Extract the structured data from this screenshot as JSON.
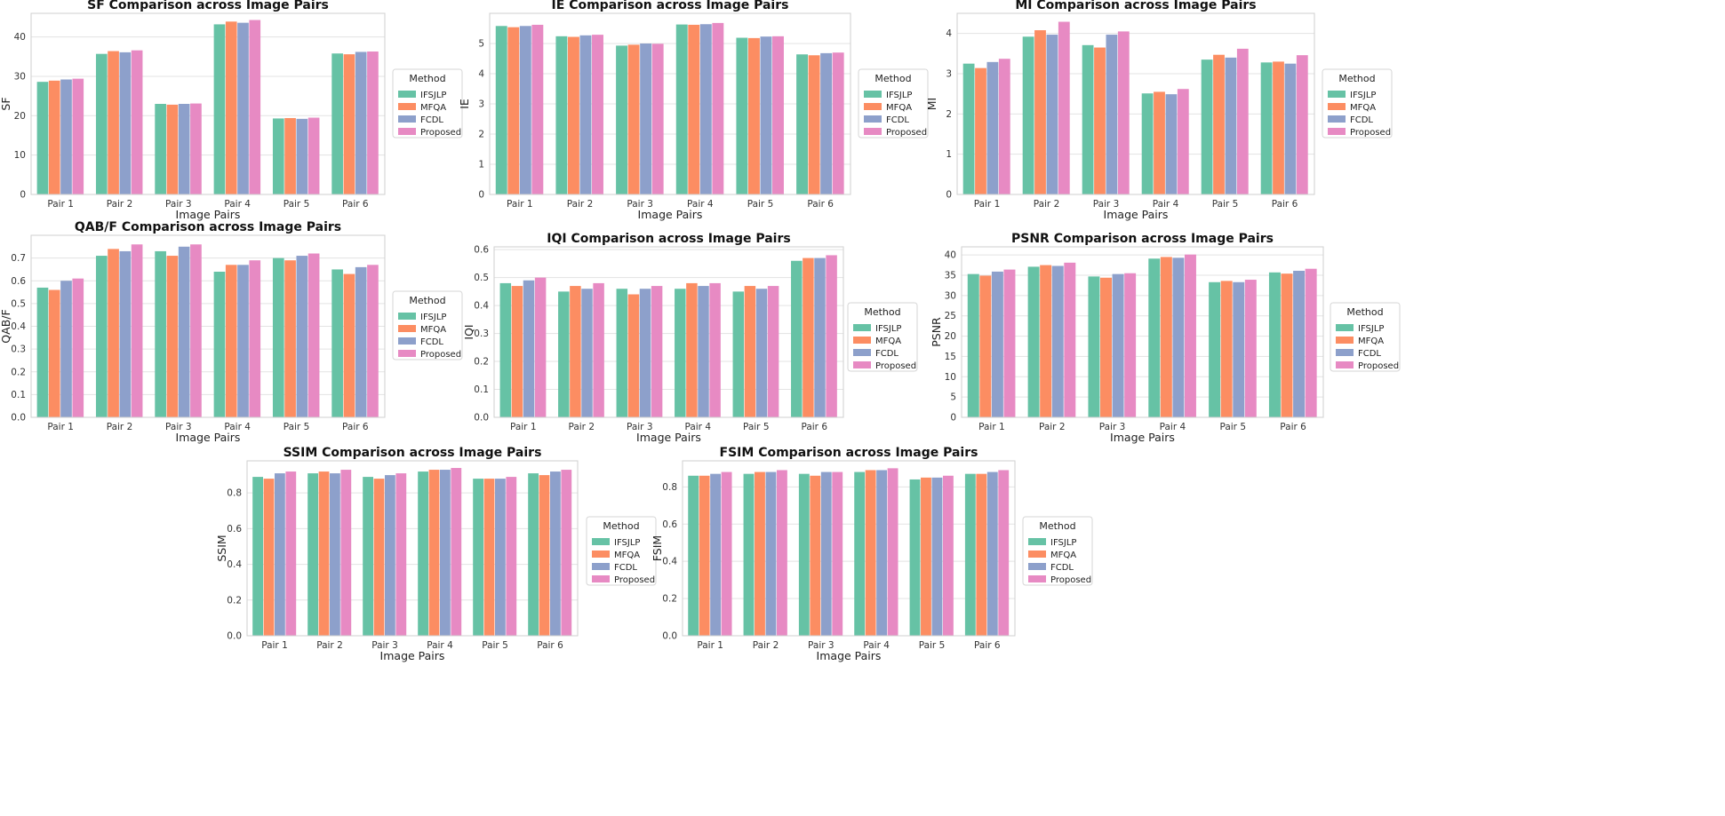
{
  "colors": {
    "IFSJLP": "#66c2a5",
    "MFQA": "#fc8d62",
    "FCDL": "#8da0cb",
    "Proposed": "#e78ac3"
  },
  "chart_data": [
    {
      "type": "bar",
      "title": "SF Comparison across Image Pairs",
      "xlabel": "Image Pairs",
      "ylabel": "SF",
      "ylim": [
        0,
        46
      ],
      "yticks": [
        "0",
        "10",
        "20",
        "30",
        "40"
      ],
      "yticks_values": [
        0,
        10,
        20,
        30,
        40
      ],
      "grid": true,
      "legend_title": "Method",
      "legend_position": "right",
      "categories": [
        "Pair 1",
        "Pair 2",
        "Pair 3",
        "Pair 4",
        "Pair 5",
        "Pair 6"
      ],
      "series": [
        {
          "name": "IFSJLP",
          "values": [
            28.6,
            35.7,
            23.0,
            43.2,
            19.3,
            35.8
          ]
        },
        {
          "name": "MFQA",
          "values": [
            28.9,
            36.4,
            22.8,
            43.9,
            19.4,
            35.6
          ]
        },
        {
          "name": "FCDL",
          "values": [
            29.2,
            36.1,
            23.0,
            43.6,
            19.2,
            36.2
          ]
        },
        {
          "name": "Proposed",
          "values": [
            29.4,
            36.6,
            23.1,
            44.3,
            19.5,
            36.3
          ]
        }
      ]
    },
    {
      "type": "bar",
      "title": "IE Comparison across Image Pairs",
      "xlabel": "Image Pairs",
      "ylabel": "IE",
      "ylim": [
        0,
        6.0
      ],
      "yticks": [
        "0",
        "1",
        "2",
        "3",
        "4",
        "5"
      ],
      "yticks_values": [
        0,
        1,
        2,
        3,
        4,
        5
      ],
      "grid": true,
      "legend_title": "Method",
      "legend_position": "right",
      "categories": [
        "Pair 1",
        "Pair 2",
        "Pair 3",
        "Pair 4",
        "Pair 5",
        "Pair 6"
      ],
      "series": [
        {
          "name": "IFSJLP",
          "values": [
            5.58,
            5.24,
            4.93,
            5.63,
            5.19,
            4.64
          ]
        },
        {
          "name": "MFQA",
          "values": [
            5.54,
            5.22,
            4.96,
            5.62,
            5.18,
            4.61
          ]
        },
        {
          "name": "FCDL",
          "values": [
            5.58,
            5.27,
            5.0,
            5.64,
            5.23,
            4.68
          ]
        },
        {
          "name": "Proposed",
          "values": [
            5.62,
            5.29,
            4.99,
            5.68,
            5.24,
            4.7
          ]
        }
      ]
    },
    {
      "type": "bar",
      "title": "MI Comparison across Image Pairs",
      "xlabel": "Image Pairs",
      "ylabel": "MI",
      "ylim": [
        0,
        4.5
      ],
      "yticks": [
        "0",
        "1",
        "2",
        "3",
        "4"
      ],
      "yticks_values": [
        0,
        1,
        2,
        3,
        4
      ],
      "grid": true,
      "legend_title": "Method",
      "legend_position": "right",
      "categories": [
        "Pair 1",
        "Pair 2",
        "Pair 3",
        "Pair 4",
        "Pair 5",
        "Pair 6"
      ],
      "series": [
        {
          "name": "IFSJLP",
          "values": [
            3.25,
            3.92,
            3.71,
            2.51,
            3.35,
            3.28
          ]
        },
        {
          "name": "MFQA",
          "values": [
            3.14,
            4.08,
            3.65,
            2.55,
            3.47,
            3.3
          ]
        },
        {
          "name": "FCDL",
          "values": [
            3.29,
            3.97,
            3.97,
            2.49,
            3.4,
            3.25
          ]
        },
        {
          "name": "Proposed",
          "values": [
            3.37,
            4.29,
            4.05,
            2.62,
            3.62,
            3.46
          ]
        }
      ]
    },
    {
      "type": "bar",
      "title": "QAB/F Comparison across Image Pairs",
      "xlabel": "Image Pairs",
      "ylabel": "QAB/F",
      "ylim": [
        0,
        0.8
      ],
      "yticks": [
        "0.0",
        "0.1",
        "0.2",
        "0.3",
        "0.4",
        "0.5",
        "0.6",
        "0.7"
      ],
      "yticks_values": [
        0,
        0.1,
        0.2,
        0.3,
        0.4,
        0.5,
        0.6,
        0.7
      ],
      "grid": true,
      "legend_title": "Method",
      "legend_position": "right",
      "categories": [
        "Pair 1",
        "Pair 2",
        "Pair 3",
        "Pair 4",
        "Pair 5",
        "Pair 6"
      ],
      "series": [
        {
          "name": "IFSJLP",
          "values": [
            0.57,
            0.71,
            0.73,
            0.64,
            0.7,
            0.65
          ]
        },
        {
          "name": "MFQA",
          "values": [
            0.56,
            0.74,
            0.71,
            0.67,
            0.69,
            0.63
          ]
        },
        {
          "name": "FCDL",
          "values": [
            0.6,
            0.73,
            0.75,
            0.67,
            0.71,
            0.66
          ]
        },
        {
          "name": "Proposed",
          "values": [
            0.61,
            0.76,
            0.76,
            0.69,
            0.72,
            0.67
          ]
        }
      ]
    },
    {
      "type": "bar",
      "title": "IQI Comparison across Image Pairs",
      "xlabel": "Image Pairs",
      "ylabel": "IQI",
      "ylim": [
        0,
        0.61
      ],
      "yticks": [
        "0.0",
        "0.1",
        "0.2",
        "0.3",
        "0.4",
        "0.5",
        "0.6"
      ],
      "yticks_values": [
        0,
        0.1,
        0.2,
        0.3,
        0.4,
        0.5,
        0.6
      ],
      "grid": true,
      "legend_title": "Method",
      "legend_position": "right",
      "categories": [
        "Pair 1",
        "Pair 2",
        "Pair 3",
        "Pair 4",
        "Pair 5",
        "Pair 6"
      ],
      "series": [
        {
          "name": "IFSJLP",
          "values": [
            0.48,
            0.45,
            0.46,
            0.46,
            0.45,
            0.56
          ]
        },
        {
          "name": "MFQA",
          "values": [
            0.47,
            0.47,
            0.44,
            0.48,
            0.47,
            0.57
          ]
        },
        {
          "name": "FCDL",
          "values": [
            0.49,
            0.46,
            0.46,
            0.47,
            0.46,
            0.57
          ]
        },
        {
          "name": "Proposed",
          "values": [
            0.5,
            0.48,
            0.47,
            0.48,
            0.47,
            0.58
          ]
        }
      ]
    },
    {
      "type": "bar",
      "title": "PSNR Comparison across Image Pairs",
      "xlabel": "Image Pairs",
      "ylabel": "PSNR",
      "ylim": [
        0,
        42
      ],
      "yticks": [
        "0",
        "5",
        "10",
        "15",
        "20",
        "25",
        "30",
        "35",
        "40"
      ],
      "yticks_values": [
        0,
        5,
        10,
        15,
        20,
        25,
        30,
        35,
        40
      ],
      "grid": true,
      "legend_title": "Method",
      "legend_position": "right",
      "categories": [
        "Pair 1",
        "Pair 2",
        "Pair 3",
        "Pair 4",
        "Pair 5",
        "Pair 6"
      ],
      "series": [
        {
          "name": "IFSJLP",
          "values": [
            35.3,
            37.1,
            34.7,
            39.1,
            33.3,
            35.7
          ]
        },
        {
          "name": "MFQA",
          "values": [
            34.9,
            37.5,
            34.4,
            39.5,
            33.6,
            35.4
          ]
        },
        {
          "name": "FCDL",
          "values": [
            35.9,
            37.3,
            35.3,
            39.3,
            33.3,
            36.1
          ]
        },
        {
          "name": "Proposed",
          "values": [
            36.4,
            38.1,
            35.5,
            40.1,
            33.9,
            36.6
          ]
        }
      ]
    },
    {
      "type": "bar",
      "title": "SSIM Comparison across Image Pairs",
      "xlabel": "Image Pairs",
      "ylabel": "SSIM",
      "ylim": [
        0,
        0.98
      ],
      "yticks": [
        "0.0",
        "0.2",
        "0.4",
        "0.6",
        "0.8"
      ],
      "yticks_values": [
        0,
        0.2,
        0.4,
        0.6,
        0.8
      ],
      "grid": true,
      "legend_title": "Method",
      "legend_position": "right",
      "categories": [
        "Pair 1",
        "Pair 2",
        "Pair 3",
        "Pair 4",
        "Pair 5",
        "Pair 6"
      ],
      "series": [
        {
          "name": "IFSJLP",
          "values": [
            0.89,
            0.91,
            0.89,
            0.92,
            0.88,
            0.91
          ]
        },
        {
          "name": "MFQA",
          "values": [
            0.88,
            0.92,
            0.88,
            0.93,
            0.88,
            0.9
          ]
        },
        {
          "name": "FCDL",
          "values": [
            0.91,
            0.91,
            0.9,
            0.93,
            0.88,
            0.92
          ]
        },
        {
          "name": "Proposed",
          "values": [
            0.92,
            0.93,
            0.91,
            0.94,
            0.89,
            0.93
          ]
        }
      ]
    },
    {
      "type": "bar",
      "title": "FSIM Comparison across Image Pairs",
      "xlabel": "Image Pairs",
      "ylabel": "FSIM",
      "ylim": [
        0,
        0.94
      ],
      "yticks": [
        "0.0",
        "0.2",
        "0.4",
        "0.6",
        "0.8"
      ],
      "yticks_values": [
        0,
        0.2,
        0.4,
        0.6,
        0.8
      ],
      "grid": true,
      "legend_title": "Method",
      "legend_position": "right",
      "categories": [
        "Pair 1",
        "Pair 2",
        "Pair 3",
        "Pair 4",
        "Pair 5",
        "Pair 6"
      ],
      "series": [
        {
          "name": "IFSJLP",
          "values": [
            0.86,
            0.87,
            0.87,
            0.88,
            0.84,
            0.87
          ]
        },
        {
          "name": "MFQA",
          "values": [
            0.86,
            0.88,
            0.86,
            0.89,
            0.85,
            0.87
          ]
        },
        {
          "name": "FCDL",
          "values": [
            0.87,
            0.88,
            0.88,
            0.89,
            0.85,
            0.88
          ]
        },
        {
          "name": "Proposed",
          "values": [
            0.88,
            0.89,
            0.88,
            0.9,
            0.86,
            0.89
          ]
        }
      ]
    }
  ]
}
